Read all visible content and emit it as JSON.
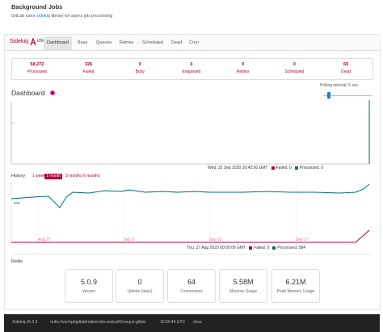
{
  "header": {
    "title": "Background Jobs",
    "subtitle": {
      "before": "GitLab uses ",
      "link": "sidekiq",
      "after": " library for async job processing"
    }
  },
  "nav": {
    "brand": "Sidekiq",
    "status": "idle",
    "tabs": [
      "Dashboard",
      "Busy",
      "Queues",
      "Retries",
      "Scheduled",
      "Dead",
      "Cron"
    ]
  },
  "stats": [
    {
      "value": "58,272",
      "label": "Processed"
    },
    {
      "value": "326",
      "label": "Failed"
    },
    {
      "value": "0",
      "label": "Busy"
    },
    {
      "value": "0",
      "label": "Enqueued"
    },
    {
      "value": "0",
      "label": "Retries"
    },
    {
      "value": "0",
      "label": "Scheduled"
    },
    {
      "value": "69",
      "label": "Dead"
    }
  ],
  "polling": "Polling interval: 5 sec",
  "dashboard": {
    "title": "Dashboard",
    "realtime": {
      "time": "Wed, 23 Sep 2020 16:43:50 GMT",
      "failed": "Failed: 0",
      "processed": "Processed: 0"
    }
  },
  "history": {
    "title": "History",
    "ranges": [
      "1 week",
      "1 month",
      "3 months",
      "6 months"
    ],
    "y_label": "500",
    "x_labels": [
      "Aug 27",
      "Sep 3",
      "Sep 10",
      "Sep 17"
    ],
    "time": "Thu, 27 Aug 2020 00:00:00 GMT",
    "failed": "Failed: 0",
    "processed": "Processed: 584"
  },
  "redis": {
    "title": "Redis",
    "stats": [
      {
        "value": "5.0.9",
        "label": "Version"
      },
      {
        "value": "0",
        "label": "Uptime (days)"
      },
      {
        "value": "64",
        "label": "Connections"
      },
      {
        "value": "5.58M",
        "label": "Memory Usage"
      },
      {
        "value": "6.21M",
        "label": "Peak Memory Usage"
      }
    ]
  },
  "footer": {
    "version": "Sidekiq v5.2.9",
    "url": "redis://var/opt/gitlab/redis/redis.socket/0/resque:gitlab",
    "time": "16:50:46 UTC",
    "docs": "docs"
  }
}
